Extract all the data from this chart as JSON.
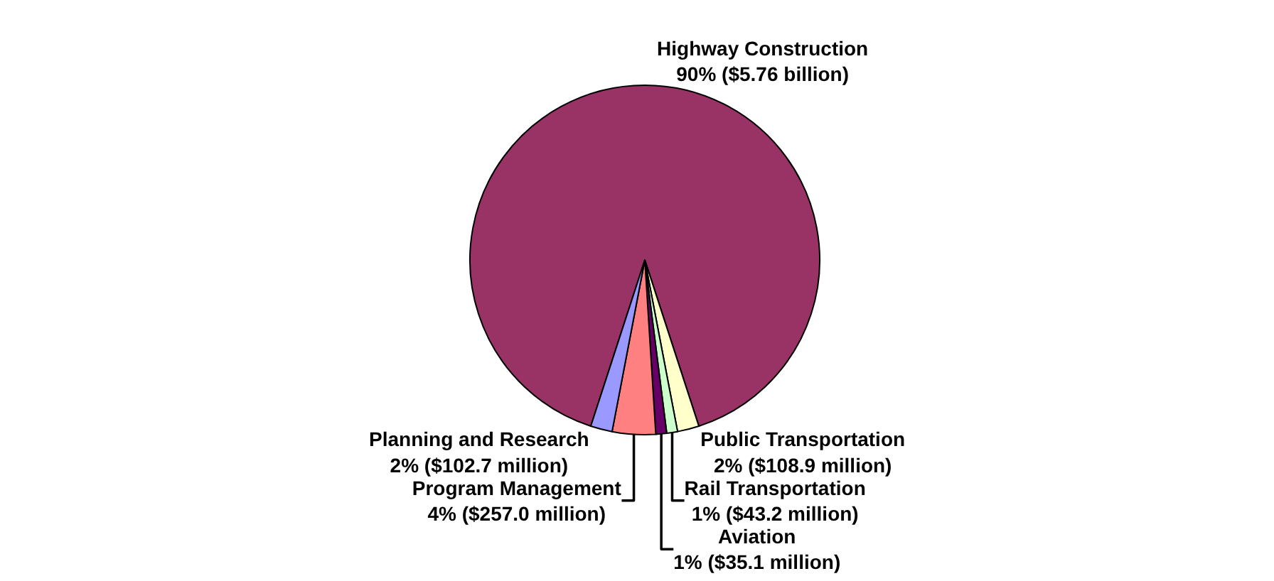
{
  "chart_data": {
    "type": "pie",
    "categories": [
      "Highway Construction",
      "Public Transportation",
      "Rail Transportation",
      "Aviation",
      "Program Management",
      "Planning and Research"
    ],
    "values": [
      90,
      2,
      1,
      1,
      4,
      2
    ],
    "value_labels": [
      "90% ($5.76 billion)",
      "2% ($108.9 million)",
      "1% ($43.2 million)",
      "1% ($35.1 million)",
      "4% ($257.0 million)",
      "2% ($102.7 million)"
    ],
    "colors": [
      "#993366",
      "#ffffcc",
      "#ccffcc",
      "#660066",
      "#ff8080",
      "#9999ff"
    ],
    "legend": false
  }
}
